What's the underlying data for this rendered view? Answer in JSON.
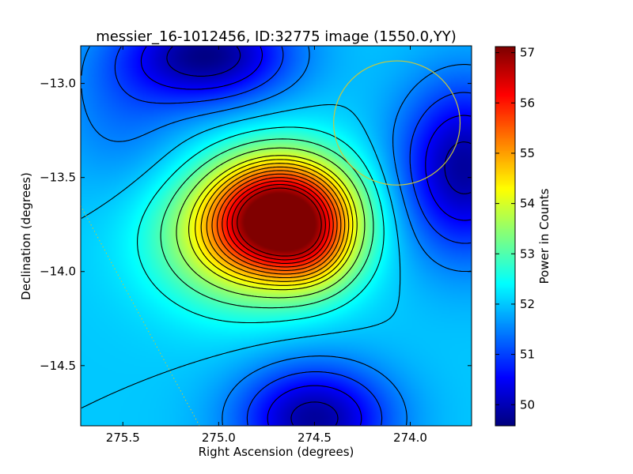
{
  "chart_data": {
    "type": "heatmap",
    "title": "messier_16-1012456, ID:32775 image (1550.0,YY)",
    "xlabel": "Right Ascension (degrees)",
    "ylabel": "Declination (degrees)",
    "colorbar_label": "Power in Counts",
    "xlim": [
      275.72,
      273.68
    ],
    "ylim": [
      -14.82,
      -12.8
    ],
    "x_ticks": [
      275.5,
      275.0,
      274.5,
      274.0
    ],
    "x_tick_labels": [
      "275.5",
      "275.0",
      "274.5",
      "274.0"
    ],
    "y_ticks": [
      -13.0,
      -13.5,
      -14.0,
      -14.5
    ],
    "y_tick_labels": [
      "−13.0",
      "−13.5",
      "−14.0",
      "−14.5"
    ],
    "colorbar_range": [
      49.58,
      57.12
    ],
    "colorbar_ticks": [
      50,
      51,
      52,
      53,
      54,
      55,
      56,
      57
    ],
    "colorbar_tick_labels": [
      "50",
      "51",
      "52",
      "53",
      "54",
      "55",
      "56",
      "57"
    ],
    "colormap": "jet",
    "field": {
      "background": 52.0,
      "components": [
        {
          "ra": 274.65,
          "dec": -13.7,
          "amp": 4.7,
          "sx": 0.26,
          "sy": 0.22
        },
        {
          "ra": 274.9,
          "dec": -13.82,
          "amp": 1.9,
          "sx": 0.32,
          "sy": 0.26
        },
        {
          "ra": 274.5,
          "dec": -13.92,
          "amp": 0.8,
          "sx": 0.16,
          "sy": 0.16
        },
        {
          "ra": 275.05,
          "dec": -12.85,
          "amp": -2.3,
          "sx": 0.3,
          "sy": 0.18
        },
        {
          "ra": 273.72,
          "dec": -13.45,
          "amp": -2.2,
          "sx": 0.24,
          "sy": 0.32
        },
        {
          "ra": 274.5,
          "dec": -14.78,
          "amp": -2.2,
          "sx": 0.28,
          "sy": 0.2
        },
        {
          "ra": 275.5,
          "dec": -13.15,
          "amp": -0.6,
          "sx": 0.25,
          "sy": 0.3
        }
      ]
    },
    "contour_levels": [
      50.0,
      50.5,
      51.0,
      51.5,
      52.0,
      52.5,
      53.0,
      53.5,
      54.0,
      54.3,
      54.6,
      54.9,
      55.2,
      55.5,
      55.8,
      56.1,
      56.4,
      56.7
    ],
    "contour_color": "#000000",
    "overlays": [
      {
        "type": "circle",
        "ra": 274.07,
        "dec": -13.21,
        "radius_deg": 0.33,
        "color": "#c8c83c"
      },
      {
        "type": "dotted-line",
        "from": [
          275.72,
          -13.65
        ],
        "to": [
          275.1,
          -14.82
        ],
        "color": "#c8c83c"
      }
    ]
  }
}
